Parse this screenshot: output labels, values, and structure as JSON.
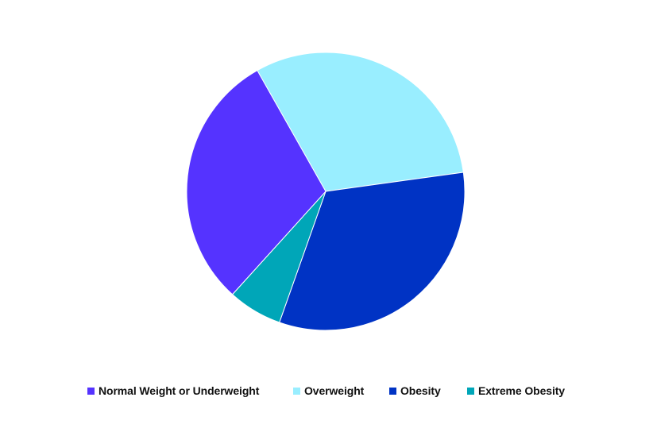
{
  "chart_data": {
    "type": "pie",
    "title": "",
    "legend_position": "bottom",
    "slices": [
      {
        "label": "Normal Weight or Underweight",
        "value": 30.1,
        "color": "#5533ff"
      },
      {
        "label": "Overweight",
        "value": 31.0,
        "color": "#99eeff"
      },
      {
        "label": "Obesity",
        "value": 32.6,
        "color": "#0033c4"
      },
      {
        "label": "Extreme Obesity",
        "value": 6.3,
        "color": "#00a6b8"
      }
    ]
  }
}
